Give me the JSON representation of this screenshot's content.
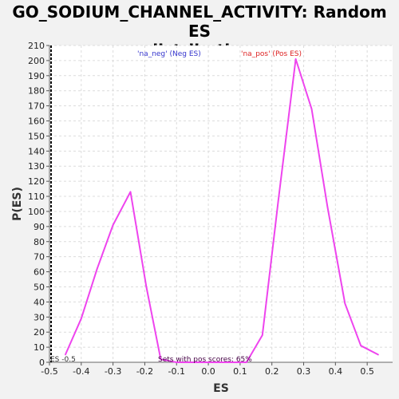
{
  "chart_data": {
    "type": "line",
    "title_line1": "GO_SODIUM_CHANNEL_ACTIVITY: Random ES",
    "title_line2": "distribution",
    "xlabel": "ES",
    "ylabel": "P(ES)",
    "xlim": [
      -0.5,
      0.58
    ],
    "ylim": [
      0,
      210
    ],
    "x_ticks": [
      "-0.5",
      "-0.4",
      "-0.3",
      "-0.2",
      "-0.1",
      "0.0",
      "0.1",
      "0.2",
      "0.3",
      "0.4",
      "0.5"
    ],
    "y_ticks": [
      "0",
      "10",
      "20",
      "30",
      "40",
      "50",
      "60",
      "70",
      "80",
      "90",
      "100",
      "110",
      "120",
      "130",
      "140",
      "150",
      "160",
      "170",
      "180",
      "190",
      "200",
      "210"
    ],
    "grid": true,
    "series_color": "#ee44ee",
    "series": [
      {
        "values": [
          {
            "x": -0.45,
            "y": 5
          },
          {
            "x": -0.4,
            "y": 29
          },
          {
            "x": -0.35,
            "y": 62
          },
          {
            "x": -0.3,
            "y": 91
          },
          {
            "x": -0.245,
            "y": 113
          },
          {
            "x": -0.195,
            "y": 50
          },
          {
            "x": -0.15,
            "y": 2
          },
          {
            "x": -0.1,
            "y": 0
          },
          {
            "x": 0.12,
            "y": 0
          },
          {
            "x": 0.17,
            "y": 18
          },
          {
            "x": 0.22,
            "y": 107
          },
          {
            "x": 0.275,
            "y": 201
          },
          {
            "x": 0.325,
            "y": 168
          },
          {
            "x": 0.375,
            "y": 103
          },
          {
            "x": 0.43,
            "y": 39
          },
          {
            "x": 0.48,
            "y": 11
          },
          {
            "x": 0.535,
            "y": 5
          }
        ]
      }
    ],
    "annotations": {
      "neg_label": "'na_neg' (Neg ES)",
      "neg_color": "#3333cc",
      "pos_label": "'na_pos' (Pos ES)",
      "pos_color": "#dd2222",
      "sets_label": "Sets with pos scores: 65%",
      "sets_color": "#440044",
      "es_marker_label": "ES -0.5",
      "es_marker_x": -0.5
    }
  }
}
